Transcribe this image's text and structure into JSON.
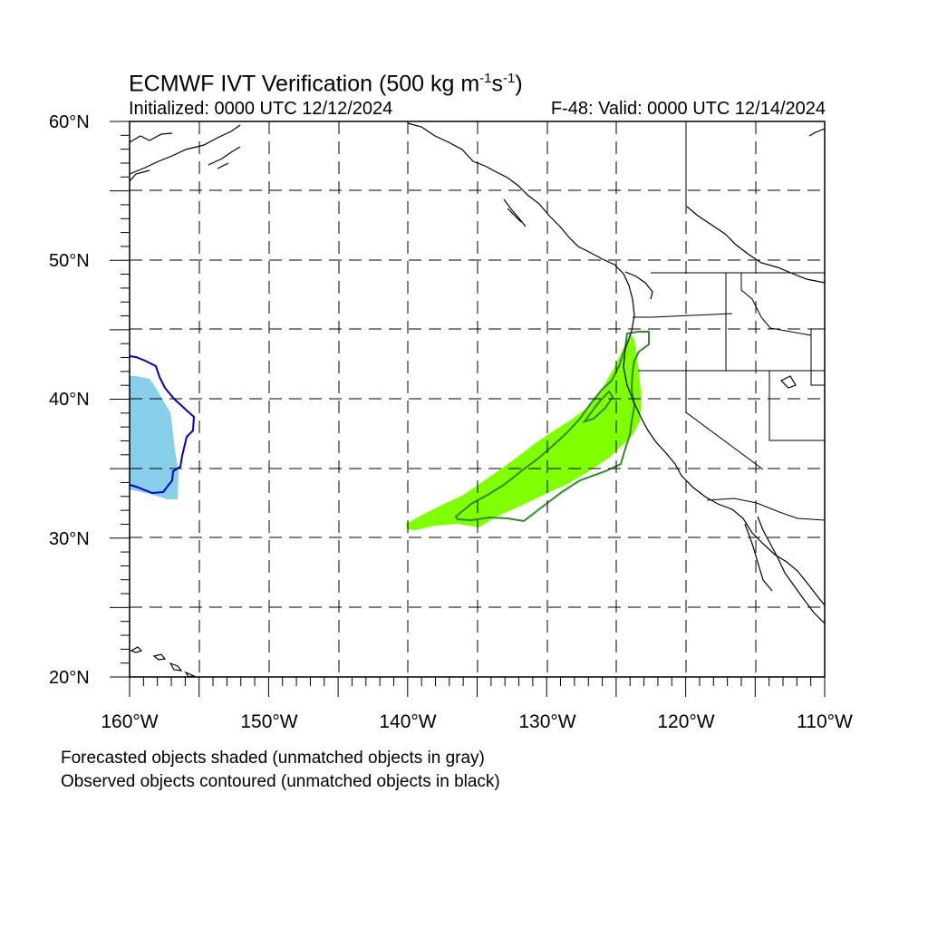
{
  "map": {
    "title_main": "ECMWF IVT Verification (500 kg m",
    "title_exp1": "-1",
    "title_mid": "s",
    "title_exp2": "-1",
    "title_end": ")",
    "initialized": "Initialized: 0000 UTC 12/12/2024",
    "valid": "F-48: Valid: 0000 UTC 12/14/2024",
    "lat_labels": [
      "60°N",
      "50°N",
      "40°N",
      "30°N",
      "20°N"
    ],
    "lon_labels": [
      "160°W",
      "150°W",
      "140°W",
      "130°W",
      "120°W",
      "110°W"
    ],
    "extent": {
      "lon": [
        -160,
        -110
      ],
      "lat": [
        20,
        60
      ]
    },
    "grid": "dashed every 5°",
    "legend_line1": "Forecasted objects shaded (unmatched objects in gray)",
    "legend_line2": "Observed objects contoured (unmatched objects in black)",
    "colors": {
      "forecast_matched_east": "#7fff00",
      "forecast_matched_west": "#87ceeb",
      "observed_matched_east": "#2e8b2e",
      "observed_matched_west": "#0000cd",
      "coast": "#000000",
      "grid": "#000000"
    }
  }
}
